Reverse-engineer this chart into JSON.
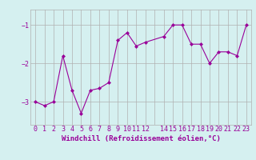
{
  "x": [
    0,
    1,
    2,
    3,
    4,
    5,
    6,
    7,
    8,
    9,
    10,
    11,
    12,
    14,
    15,
    16,
    17,
    18,
    19,
    20,
    21,
    22,
    23
  ],
  "y": [
    -3.0,
    -3.1,
    -3.0,
    -1.8,
    -2.7,
    -3.3,
    -2.7,
    -2.65,
    -2.5,
    -1.4,
    -1.2,
    -1.55,
    -1.45,
    -1.3,
    -1.0,
    -1.0,
    -1.5,
    -1.5,
    -2.0,
    -1.7,
    -1.7,
    -1.8,
    -1.0
  ],
  "line_color": "#990099",
  "marker": "D",
  "marker_size": 2,
  "bg_color": "#d5f0f0",
  "grid_color": "#b0b0b0",
  "xlabel": "Windchill (Refroidissement éolien,°C)",
  "xlabel_color": "#990099",
  "xlabel_fontsize": 6.5,
  "yticks": [
    -3,
    -2,
    -1
  ],
  "ylim": [
    -3.6,
    -0.6
  ],
  "xlim": [
    -0.5,
    23.5
  ],
  "xtick_labels": [
    "0",
    "1",
    "2",
    "3",
    "4",
    "5",
    "6",
    "7",
    "8",
    "9",
    "10",
    "11",
    "12",
    "",
    "14",
    "15",
    "16",
    "17",
    "18",
    "19",
    "20",
    "21",
    "22",
    "23"
  ],
  "tick_fontsize": 6,
  "tick_color": "#990099"
}
